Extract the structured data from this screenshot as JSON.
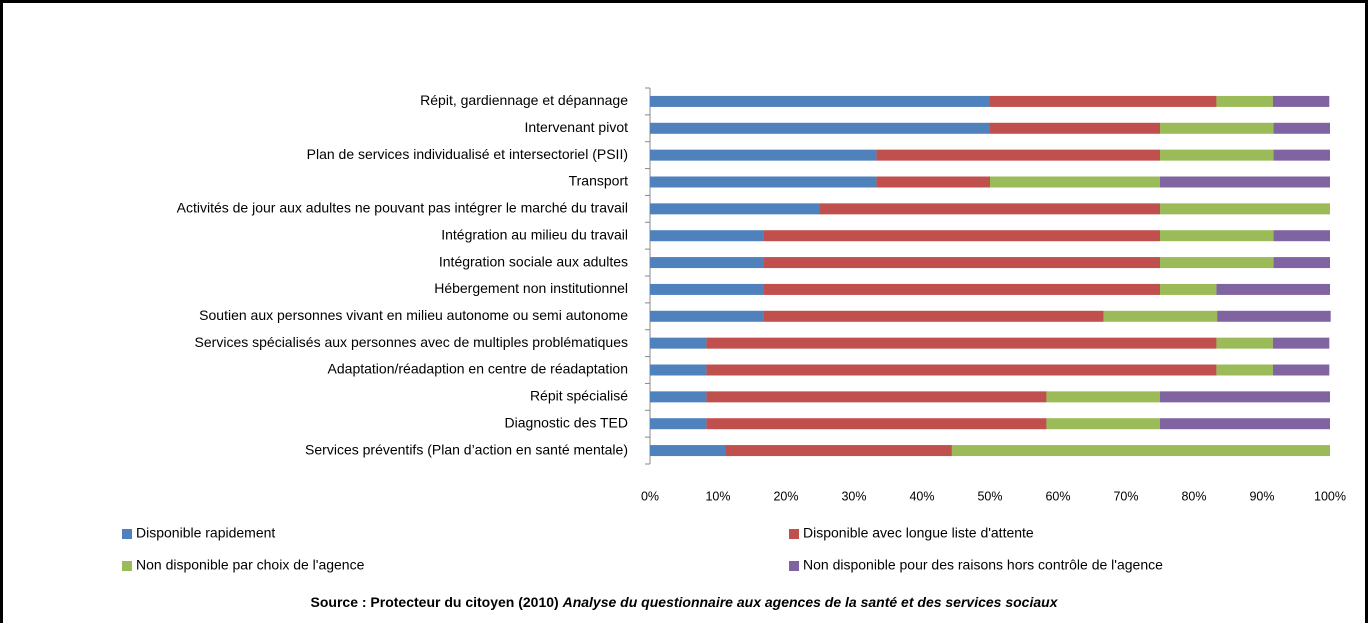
{
  "chart_data": {
    "type": "stacked-barh",
    "categories": [
      "Répit, gardiennage et dépannage",
      "Intervenant pivot",
      "Plan de services individualisé et intersectoriel (PSII)",
      "Transport",
      "Activités de jour aux adultes ne pouvant pas intégrer le marché du travail",
      "Intégration au milieu du travail",
      "Intégration sociale  aux  adultes",
      "Hébergement non institutionnel",
      "Soutien aux personnes vivant en milieu autonome ou semi autonome",
      "Services spécialisés  aux personnes  avec de multiples problématiques",
      "Adaptation/réadaption en centre de réadaptation",
      "Répit spécialisé",
      "Diagnostic des TED",
      "Services préventifs  (Plan d’action en santé mentale)"
    ],
    "series": [
      {
        "name": "Disponible rapidement",
        "color": "#4f81bd",
        "values": [
          50,
          50,
          33.3,
          33.3,
          25,
          16.7,
          16.7,
          16.7,
          16.7,
          8.3,
          8.3,
          8.3,
          8.3,
          11.1
        ]
      },
      {
        "name": "Disponible avec longue liste d'attente",
        "color": "#c0504d",
        "values": [
          33.3,
          25,
          41.7,
          16.7,
          50,
          58.3,
          58.3,
          58.3,
          50,
          75,
          75,
          50,
          50,
          33.3
        ]
      },
      {
        "name": "Non disponible par choix de l'agence",
        "color": "#9bbb59",
        "values": [
          8.3,
          16.7,
          16.7,
          25,
          25,
          16.7,
          16.7,
          8.3,
          16.7,
          8.3,
          8.3,
          16.7,
          16.7,
          55.6
        ]
      },
      {
        "name": "Non disponible pour des raisons hors contrôle de l'agence",
        "color": "#8064a2",
        "values": [
          8.3,
          8.3,
          8.3,
          25,
          0,
          8.3,
          8.3,
          16.7,
          16.7,
          8.3,
          8.3,
          25,
          25,
          0
        ]
      }
    ],
    "xlim": [
      0,
      100
    ],
    "xticks": [
      {
        "value": 0,
        "label": "0%"
      },
      {
        "value": 10,
        "label": "10%"
      },
      {
        "value": 20,
        "label": "20%"
      },
      {
        "value": 30,
        "label": "30%"
      },
      {
        "value": 40,
        "label": "40%"
      },
      {
        "value": 50,
        "label": "50%"
      },
      {
        "value": 60,
        "label": "60%"
      },
      {
        "value": 70,
        "label": "70%"
      },
      {
        "value": 80,
        "label": "80%"
      },
      {
        "value": 90,
        "label": "90%"
      },
      {
        "value": 100,
        "label": "100%"
      }
    ],
    "source": "Source :  Protecteur du citoyen  (2010)",
    "source_title": "Analyse du questionnaire aux agences de la santé et des services sociaux"
  }
}
